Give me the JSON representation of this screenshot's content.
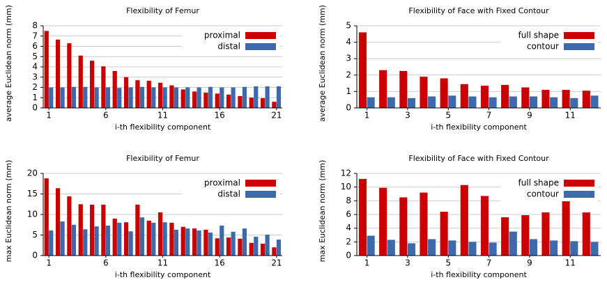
{
  "chart_data": [
    {
      "type": "bar",
      "title": "Flexibility of Femur",
      "xlabel": "i-th flexibility component",
      "ylabel": "average Euclidean norm (mm)",
      "categories": [
        "1",
        null,
        null,
        null,
        null,
        "6",
        null,
        null,
        null,
        null,
        "11",
        null,
        null,
        null,
        null,
        "16",
        null,
        null,
        null,
        null,
        "21"
      ],
      "series": [
        {
          "name": "proximal",
          "color": "#cc0000",
          "values": [
            7.5,
            6.65,
            6.3,
            5.1,
            4.6,
            4.05,
            3.6,
            3.0,
            2.7,
            2.65,
            2.45,
            2.2,
            1.8,
            1.6,
            1.5,
            1.4,
            1.3,
            1.15,
            1.0,
            0.95,
            0.6
          ]
        },
        {
          "name": "distal",
          "color": "#3e6aab",
          "values": [
            2.0,
            2.0,
            2.05,
            2.05,
            2.0,
            2.0,
            1.95,
            2.0,
            2.05,
            2.0,
            2.0,
            2.0,
            2.0,
            2.0,
            2.05,
            2.0,
            2.0,
            2.05,
            2.1,
            2.1,
            2.1
          ]
        }
      ],
      "ylim": [
        0,
        8
      ],
      "yticks": [
        0,
        1,
        2,
        3,
        4,
        5,
        6,
        7,
        8
      ],
      "grid": true,
      "legend": "top-right"
    },
    {
      "type": "bar",
      "title": "Flexibility of Face with Fixed Contour",
      "xlabel": "i-th flexibility component",
      "ylabel": "average Euclidean norm (mm)",
      "categories": [
        "1",
        null,
        "3",
        null,
        "5",
        null,
        "7",
        null,
        "9",
        null,
        "11",
        null
      ],
      "series": [
        {
          "name": "full shape",
          "color": "#cc0000",
          "values": [
            4.6,
            2.3,
            2.25,
            1.9,
            1.8,
            1.45,
            1.35,
            1.4,
            1.25,
            1.1,
            1.1,
            1.05
          ]
        },
        {
          "name": "contour",
          "color": "#3e6aab",
          "values": [
            0.65,
            0.65,
            0.6,
            0.7,
            0.75,
            0.7,
            0.65,
            0.7,
            0.7,
            0.65,
            0.6,
            0.75
          ]
        }
      ],
      "ylim": [
        0,
        5
      ],
      "yticks": [
        0,
        1,
        2,
        3,
        4,
        5
      ],
      "grid": true,
      "legend": "top-right"
    },
    {
      "type": "bar",
      "title": "Flexibility of Femur",
      "xlabel": "i-th flexibility component",
      "ylabel": "max Euclidean norm (mm)",
      "categories": [
        "1",
        null,
        null,
        null,
        null,
        "6",
        null,
        null,
        null,
        null,
        "11",
        null,
        null,
        null,
        null,
        "16",
        null,
        null,
        null,
        null,
        "21"
      ],
      "series": [
        {
          "name": "proximal",
          "color": "#cc0000",
          "values": [
            18.8,
            16.4,
            14.4,
            12.5,
            12.4,
            12.4,
            9,
            8.1,
            12.4,
            8.5,
            10.5,
            8,
            7,
            6.6,
            6.3,
            4.2,
            4.4,
            4.1,
            3.1,
            2.9,
            2.0
          ]
        },
        {
          "name": "distal",
          "color": "#3e6aab",
          "values": [
            6.1,
            8.3,
            7.5,
            6.4,
            7.1,
            7.3,
            8,
            5.9,
            9.3,
            8,
            8.1,
            6.3,
            6.6,
            6.1,
            5.6,
            7.3,
            5.8,
            6.6,
            4.6,
            5.1,
            3.9
          ]
        }
      ],
      "ylim": [
        0,
        20
      ],
      "yticks": [
        0,
        5,
        10,
        15,
        20
      ],
      "grid": true,
      "legend": "top-right"
    },
    {
      "type": "bar",
      "title": "Flexibility of Face with Fixed Contour",
      "xlabel": "i-th flexibility component",
      "ylabel": "max Euclidean norm (mm)",
      "categories": [
        "1",
        null,
        "3",
        null,
        "5",
        null,
        "7",
        null,
        "9",
        null,
        "11",
        null
      ],
      "series": [
        {
          "name": "full shape",
          "color": "#cc0000",
          "values": [
            11.2,
            9.9,
            8.5,
            9.2,
            6.4,
            10.3,
            8.7,
            5.6,
            5.9,
            6.3,
            8.1,
            6.3
          ]
        },
        {
          "name": "contour",
          "color": "#3e6aab",
          "values": [
            2.9,
            2.3,
            1.8,
            2.4,
            2.2,
            2.0,
            1.9,
            3.5,
            2.4,
            2.2,
            2.1,
            2.0
          ]
        }
      ],
      "ylim": [
        0,
        12
      ],
      "yticks": [
        0,
        2,
        4,
        6,
        8,
        10,
        12
      ],
      "grid": true,
      "legend": "top-right"
    }
  ]
}
